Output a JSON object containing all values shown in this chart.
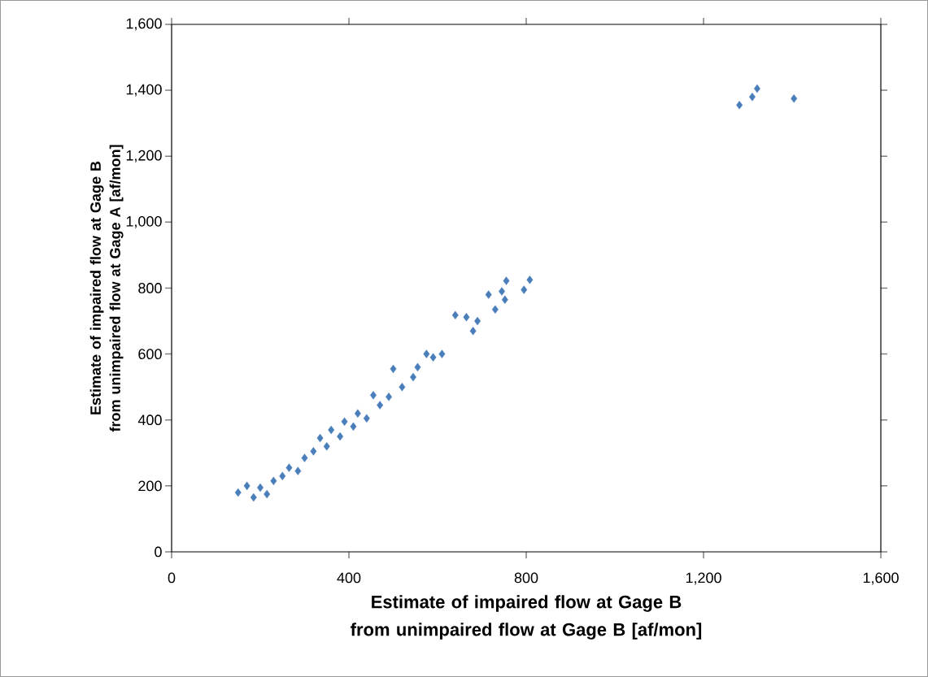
{
  "chart_data": {
    "type": "scatter",
    "xlabel": "Estimate of impaired flow at Gage B from unimpaired flow at Gage B [af/mon]",
    "ylabel": "Estimate of impaired flow at Gage B from unimpaired flow at Gage A [af/mon]",
    "xlim": [
      0,
      1600
    ],
    "ylim": [
      0,
      1600
    ],
    "xticks": [
      0,
      {
        "value": 400,
        "label": "400"
      },
      {
        "value": 800,
        "label": "800"
      },
      {
        "value": 1200,
        "label": "1,200"
      },
      {
        "value": 1600,
        "label": "1,600"
      }
    ],
    "yticks": [
      0,
      200,
      400,
      600,
      800,
      {
        "value": 1000,
        "label": "1,000"
      },
      {
        "value": 1200,
        "label": "1,200"
      },
      {
        "value": 1400,
        "label": "1,400"
      },
      {
        "value": 1600,
        "label": "1,600"
      }
    ],
    "marker": "diamond",
    "grid": false,
    "series": [
      {
        "color": "#4a7ebb",
        "x": [
          150,
          170,
          185,
          200,
          215,
          230,
          250,
          265,
          285,
          300,
          320,
          335,
          350,
          360,
          380,
          390,
          410,
          420,
          440,
          455,
          470,
          490,
          500,
          520,
          545,
          555,
          575,
          590,
          610,
          640,
          665,
          680,
          690,
          715,
          730,
          745,
          755,
          752,
          795,
          808,
          1281,
          1310,
          1321,
          1404
        ],
        "values": [
          180,
          200,
          165,
          195,
          175,
          215,
          230,
          255,
          245,
          285,
          305,
          345,
          320,
          370,
          350,
          395,
          380,
          420,
          405,
          475,
          445,
          470,
          555,
          500,
          530,
          560,
          600,
          590,
          600,
          718,
          712,
          670,
          700,
          780,
          735,
          790,
          822,
          765,
          795,
          825,
          1355,
          1380,
          1405,
          1375
        ]
      }
    ]
  }
}
